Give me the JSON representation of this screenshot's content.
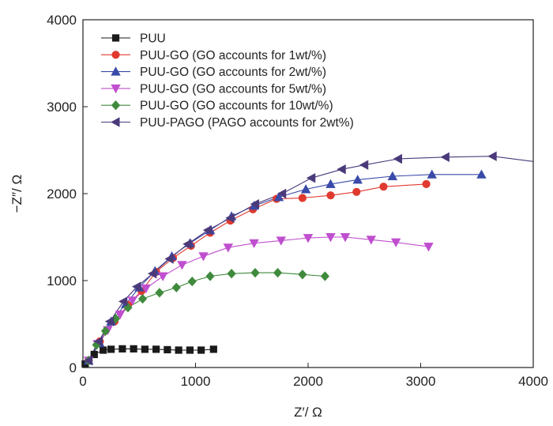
{
  "chart_data": {
    "type": "scatter",
    "title": "",
    "xlabel": "Z′/ Ω",
    "ylabel": "−Z″/ Ω",
    "xlim": [
      0,
      4000
    ],
    "ylim": [
      0,
      4000
    ],
    "xticks": [
      0,
      1000,
      2000,
      3000,
      4000
    ],
    "yticks": [
      0,
      1000,
      2000,
      3000,
      4000
    ],
    "grid": false,
    "legend_position": "top-left",
    "series": [
      {
        "name": "PUU",
        "color": "#1a1a1a",
        "marker": "square",
        "x": [
          20,
          100,
          180,
          250,
          350,
          450,
          550,
          650,
          750,
          850,
          950,
          1050,
          1160
        ],
        "y": [
          40,
          150,
          200,
          210,
          215,
          215,
          210,
          210,
          205,
          200,
          200,
          200,
          210
        ]
      },
      {
        "name": "PUU-GO (GO accounts for 1wt/%)",
        "color": "#e03a2f",
        "marker": "circle",
        "x": [
          50,
          150,
          280,
          400,
          520,
          650,
          800,
          960,
          1130,
          1310,
          1510,
          1720,
          1950,
          2200,
          2430,
          2670,
          3050
        ],
        "y": [
          80,
          300,
          530,
          720,
          880,
          1100,
          1260,
          1400,
          1550,
          1690,
          1820,
          1940,
          1950,
          1980,
          2020,
          2080,
          2110
        ]
      },
      {
        "name": "PUU-GO (GO accounts for 2wt/%)",
        "color": "#3a4aa8",
        "marker": "triangle-up",
        "x": [
          50,
          150,
          250,
          380,
          500,
          640,
          790,
          950,
          1130,
          1320,
          1520,
          1740,
          1980,
          2200,
          2440,
          2750,
          3100,
          3540
        ],
        "y": [
          80,
          280,
          530,
          730,
          920,
          1110,
          1280,
          1430,
          1580,
          1740,
          1860,
          1960,
          2050,
          2110,
          2160,
          2200,
          2220,
          2220
        ]
      },
      {
        "name": "PUU-GO (GO accounts for 5wt/%)",
        "color": "#c04fcf",
        "marker": "triangle-down",
        "x": [
          50,
          130,
          220,
          330,
          440,
          560,
          710,
          880,
          1070,
          1290,
          1520,
          1760,
          2000,
          2200,
          2330,
          2560,
          2780,
          3070
        ],
        "y": [
          80,
          270,
          430,
          610,
          770,
          910,
          1050,
          1180,
          1280,
          1380,
          1430,
          1460,
          1490,
          1500,
          1500,
          1470,
          1440,
          1390
        ]
      },
      {
        "name": "PUU-GO (GO accounts for 10wt/%)",
        "color": "#3f8a3c",
        "marker": "diamond",
        "x": [
          50,
          120,
          200,
          290,
          400,
          530,
          680,
          830,
          970,
          1130,
          1320,
          1530,
          1730,
          1950,
          2150
        ],
        "y": [
          80,
          260,
          420,
          560,
          690,
          790,
          860,
          920,
          990,
          1050,
          1080,
          1090,
          1090,
          1070,
          1050
        ]
      },
      {
        "name": "PUU-PAGO (PAGO accounts for 2wt%)",
        "color": "#4a3a7a",
        "marker": "triangle-left",
        "x": [
          50,
          140,
          240,
          360,
          480,
          620,
          770,
          930,
          1110,
          1310,
          1530,
          1770,
          2030,
          2300,
          2500,
          2800,
          3220,
          3640
        ],
        "y": [
          80,
          300,
          530,
          760,
          930,
          1080,
          1250,
          1420,
          1580,
          1720,
          1880,
          2000,
          2180,
          2280,
          2330,
          2400,
          2420,
          2430
        ]
      }
    ],
    "curve_tail": {
      "x": [
        3640,
        4000
      ],
      "y": [
        2430,
        2370
      ]
    }
  }
}
